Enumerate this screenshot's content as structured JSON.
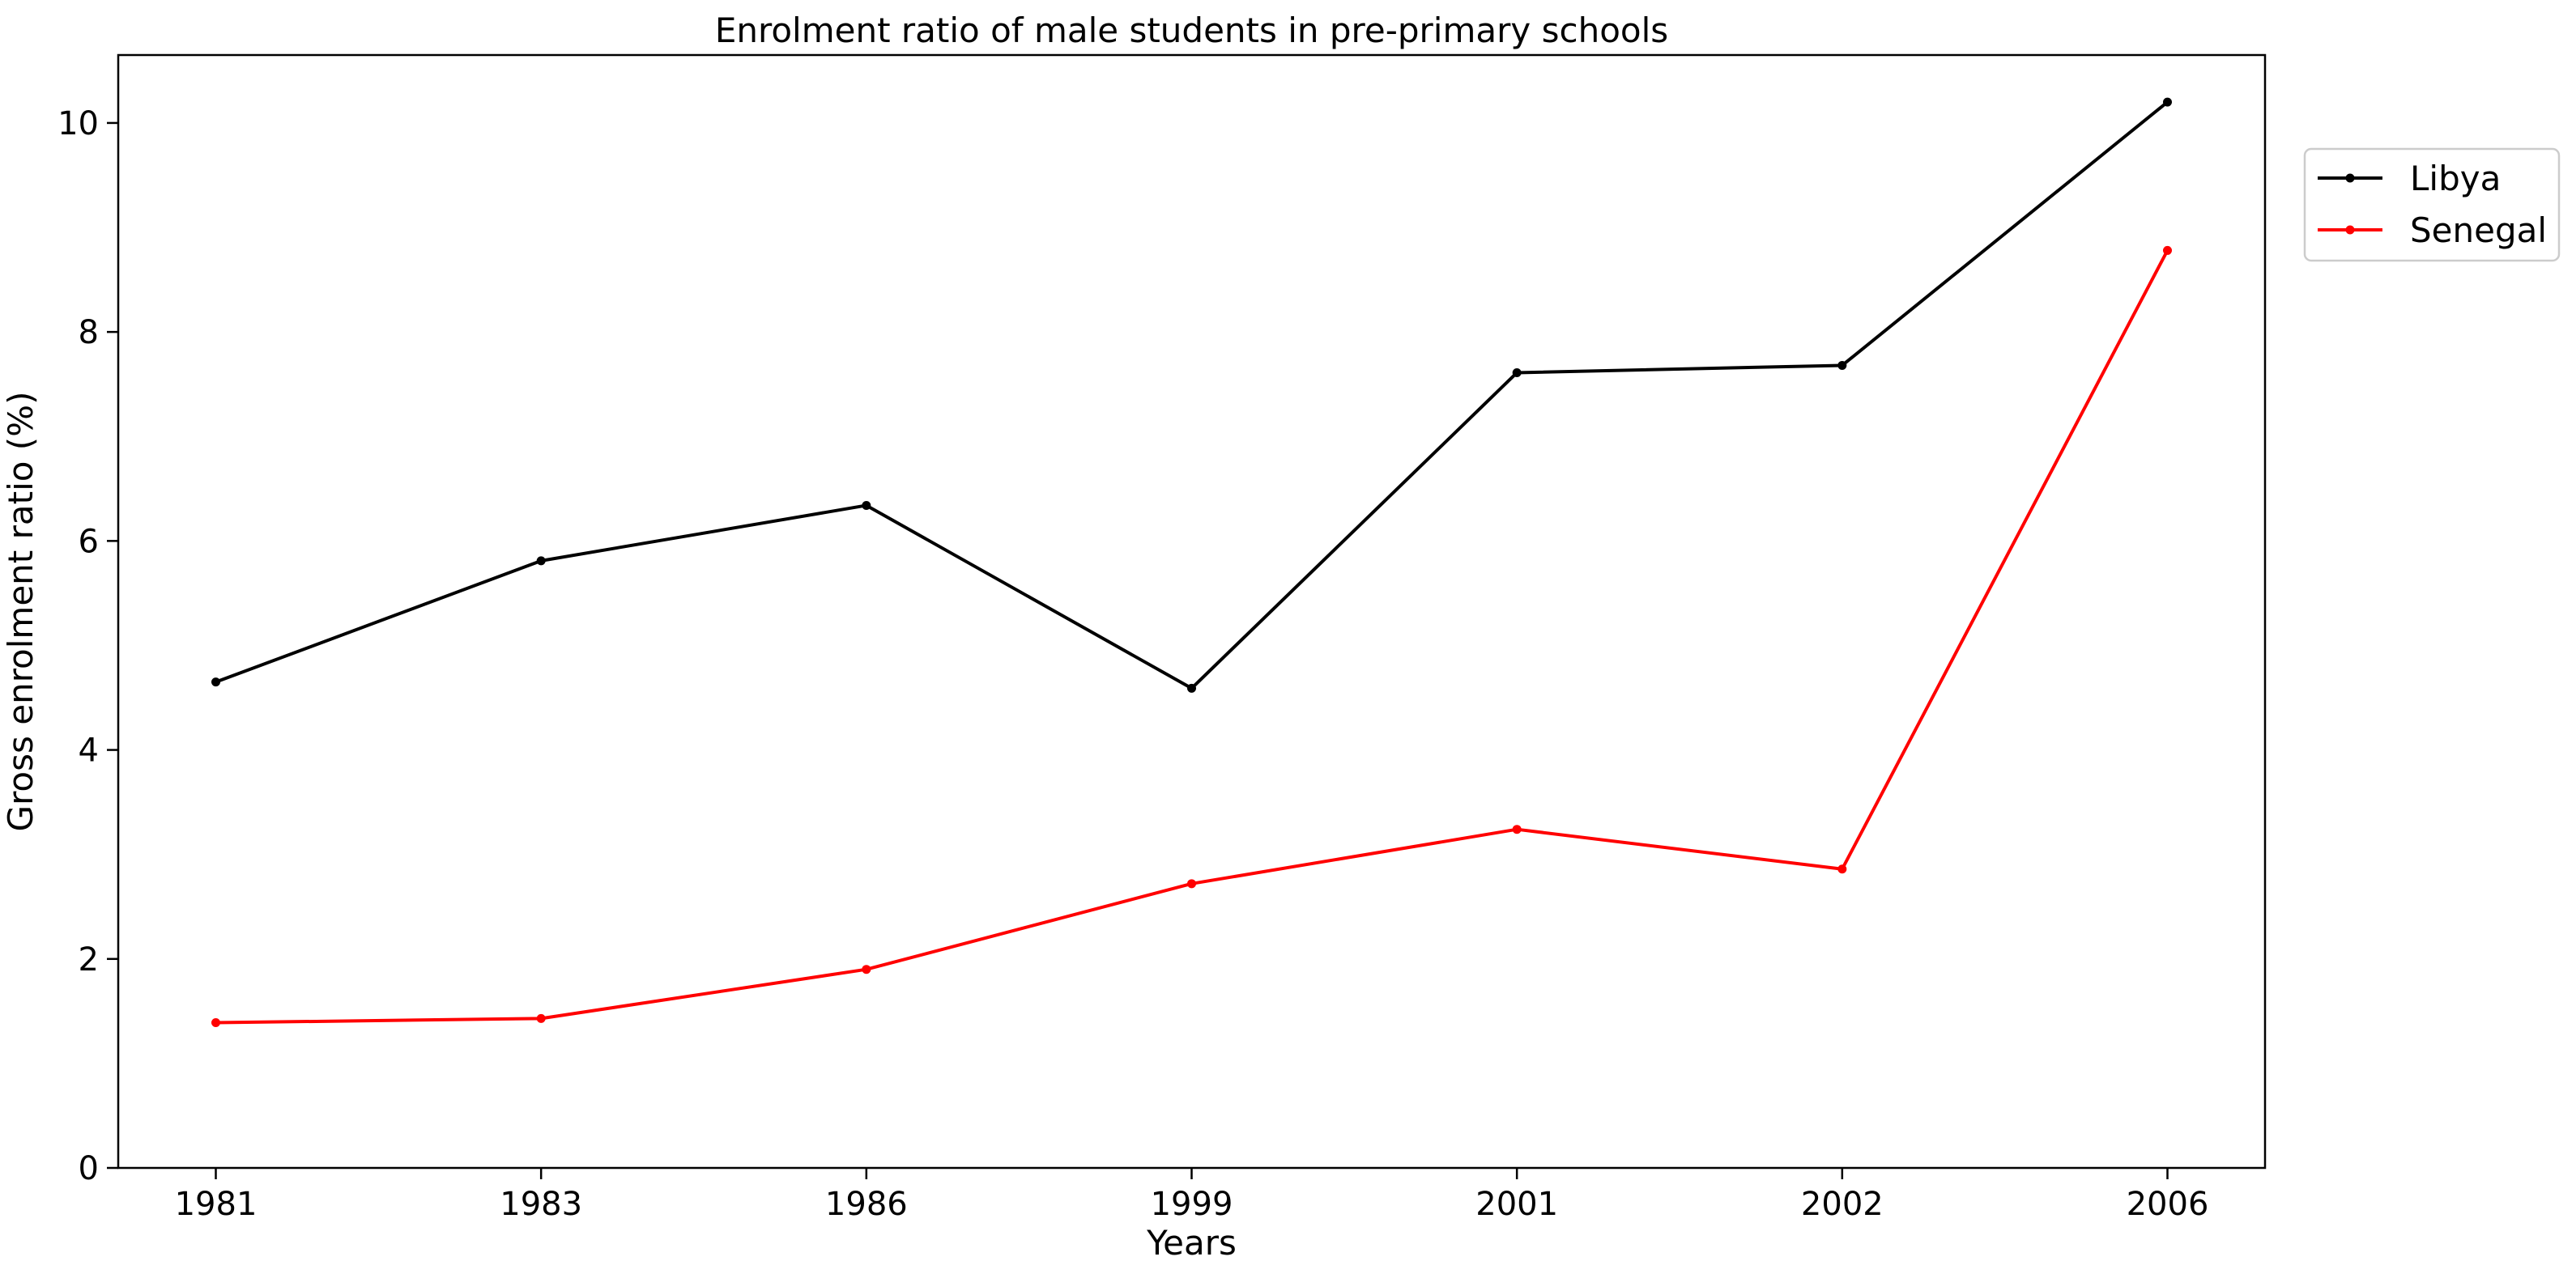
{
  "chart_data": {
    "type": "line",
    "title": "Enrolment ratio of male students in pre-primary schools",
    "xlabel": "Years",
    "ylabel": "Gross enrolment ratio (%)",
    "categories": [
      "1981",
      "1983",
      "1986",
      "1999",
      "2001",
      "2002",
      "2006"
    ],
    "ylim": [
      0,
      10.65
    ],
    "yticks": [
      0,
      2,
      4,
      6,
      8,
      10
    ],
    "grid": false,
    "legend_position": "outside-top-right",
    "series": [
      {
        "name": "Libya",
        "color": "#000000",
        "values": [
          4.65,
          5.81,
          6.34,
          4.59,
          7.61,
          7.68,
          10.2
        ]
      },
      {
        "name": "Senegal",
        "color": "#ff0000",
        "values": [
          1.39,
          1.43,
          1.9,
          2.72,
          3.24,
          2.86,
          8.78
        ]
      }
    ]
  }
}
